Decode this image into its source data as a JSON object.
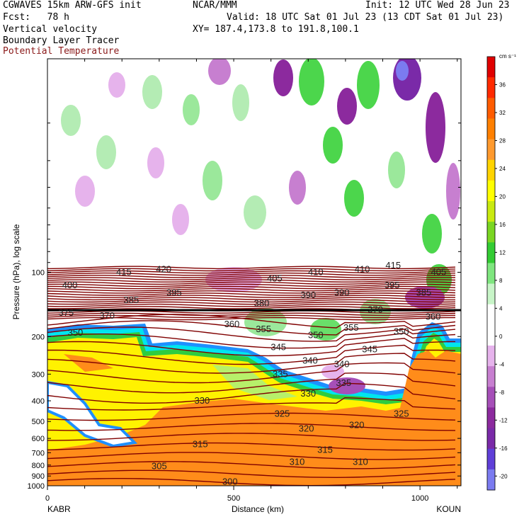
{
  "header": {
    "model": "CGWAVES 15km ARW-GFS init",
    "org": "NCAR/MMM",
    "init": "Init: 12 UTC Wed 28 Jun 23",
    "fcst": "Fcst:   78 h",
    "valid": "Valid: 18 UTC Sat 01 Jul 23 (13 CDT Sat 01 Jul 23)",
    "field1": "Vertical velocity",
    "xy": "XY= 187.4,173.8 to 191.8,100.1",
    "field2": "Boundary Layer Tracer",
    "field3": "Potential Temperature",
    "field3_color": "#8b1a1a"
  },
  "chart_data": {
    "type": "heatmap",
    "xlabel": "Distance (km)",
    "ylabel": "Pressure (hPa), log scale",
    "xlim": [
      0,
      1110
    ],
    "ylim": [
      1000,
      10
    ],
    "yscale": "log",
    "x_ticks": [
      0,
      500,
      1000
    ],
    "y_ticks": [
      100,
      200,
      300,
      400,
      500,
      600,
      700,
      800,
      900,
      1000
    ],
    "x_endpoints": [
      "KABR",
      "KOUN"
    ],
    "colorbar": {
      "unit": "cm s⁻¹",
      "levels": [
        -20,
        -16,
        -12,
        -8,
        -4,
        0,
        4,
        8,
        12,
        16,
        20,
        24,
        28,
        32,
        36
      ],
      "colors": [
        "#7b7bf0",
        "#5f3fd8",
        "#7a2aa8",
        "#8c2a9e",
        "#a64fb8",
        "#c77fd0",
        "#e6b3ec",
        "#ffffff",
        "#ffffff",
        "#c8f5c8",
        "#7fe67f",
        "#33cc33",
        "#7ad622",
        "#c9ea10",
        "#ffff00",
        "#ffd400",
        "#ff9a2e",
        "#ff8000",
        "#ff5c00",
        "#ff2a00",
        "#e00000"
      ]
    },
    "theta_labels": [
      {
        "v": "415",
        "x": 205,
        "p": 100
      },
      {
        "v": "420",
        "x": 312,
        "p": 97
      },
      {
        "v": "410",
        "x": 720,
        "p": 100
      },
      {
        "v": "410",
        "x": 845,
        "p": 97
      },
      {
        "v": "415",
        "x": 928,
        "p": 93
      },
      {
        "v": "405",
        "x": 1050,
        "p": 100
      },
      {
        "v": "400",
        "x": 60,
        "p": 115
      },
      {
        "v": "405",
        "x": 610,
        "p": 107
      },
      {
        "v": "395",
        "x": 340,
        "p": 125
      },
      {
        "v": "395",
        "x": 925,
        "p": 115
      },
      {
        "v": "385",
        "x": 225,
        "p": 135
      },
      {
        "v": "390",
        "x": 700,
        "p": 128
      },
      {
        "v": "390",
        "x": 790,
        "p": 125
      },
      {
        "v": "380",
        "x": 575,
        "p": 140
      },
      {
        "v": "385",
        "x": 1010,
        "p": 125
      },
      {
        "v": "375",
        "x": 50,
        "p": 155
      },
      {
        "v": "370",
        "x": 160,
        "p": 160
      },
      {
        "v": "370",
        "x": 880,
        "p": 150
      },
      {
        "v": "360",
        "x": 1035,
        "p": 162
      },
      {
        "v": "360",
        "x": 495,
        "p": 175
      },
      {
        "v": "355",
        "x": 580,
        "p": 185
      },
      {
        "v": "355",
        "x": 815,
        "p": 182
      },
      {
        "v": "350",
        "x": 75,
        "p": 192
      },
      {
        "v": "350",
        "x": 720,
        "p": 197
      },
      {
        "v": "350",
        "x": 950,
        "p": 190
      },
      {
        "v": "345",
        "x": 620,
        "p": 225
      },
      {
        "v": "345",
        "x": 865,
        "p": 230
      },
      {
        "v": "340",
        "x": 705,
        "p": 260
      },
      {
        "v": "340",
        "x": 790,
        "p": 270
      },
      {
        "v": "335",
        "x": 625,
        "p": 300
      },
      {
        "v": "335",
        "x": 795,
        "p": 330
      },
      {
        "v": "330",
        "x": 415,
        "p": 400
      },
      {
        "v": "330",
        "x": 700,
        "p": 370
      },
      {
        "v": "325",
        "x": 630,
        "p": 460
      },
      {
        "v": "325",
        "x": 950,
        "p": 460
      },
      {
        "v": "320",
        "x": 695,
        "p": 540
      },
      {
        "v": "320",
        "x": 830,
        "p": 520
      },
      {
        "v": "315",
        "x": 410,
        "p": 640
      },
      {
        "v": "315",
        "x": 745,
        "p": 680
      },
      {
        "v": "310",
        "x": 670,
        "p": 775
      },
      {
        "v": "310",
        "x": 840,
        "p": 775
      },
      {
        "v": "305",
        "x": 300,
        "p": 810
      },
      {
        "v": "300",
        "x": 490,
        "p": 960
      }
    ]
  }
}
